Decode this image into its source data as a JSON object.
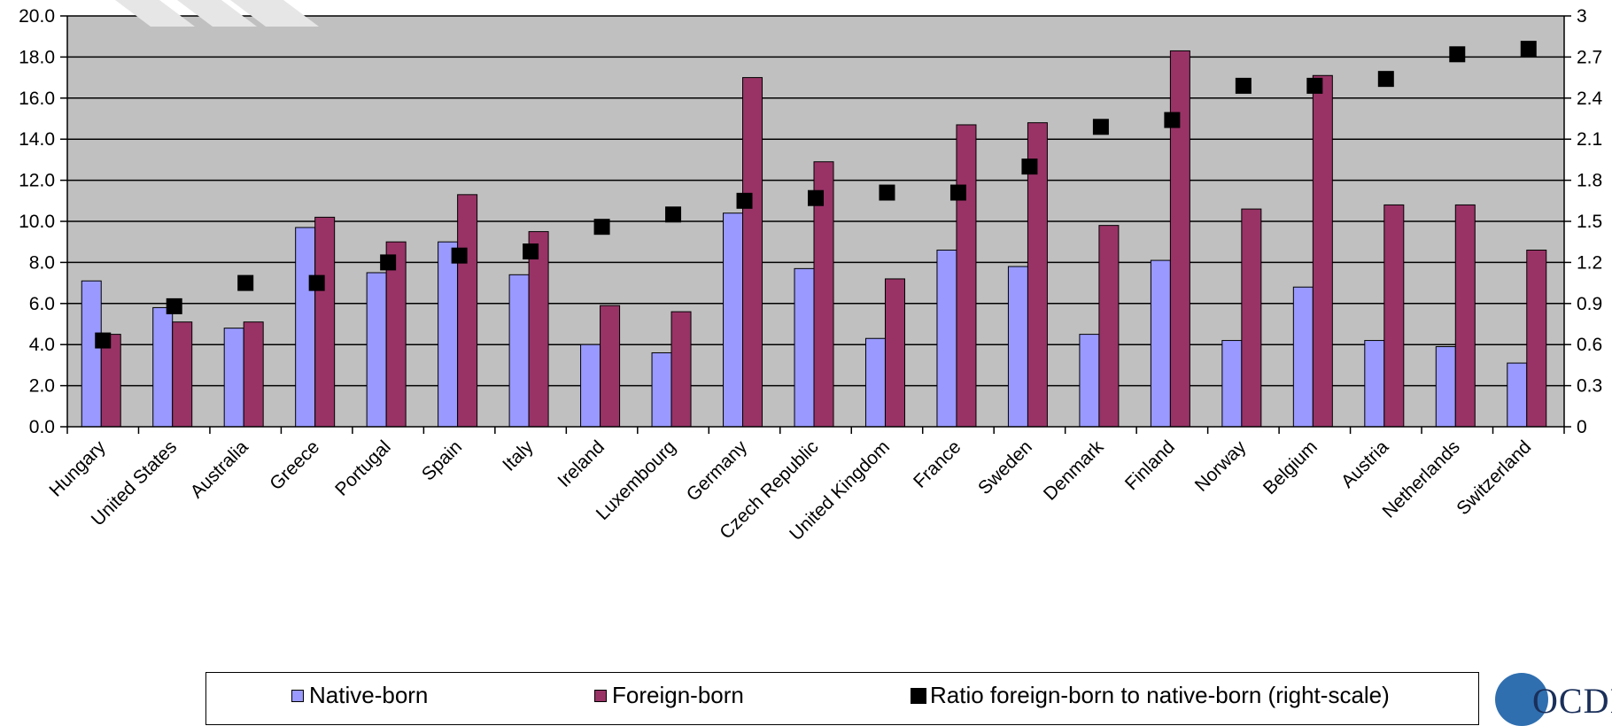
{
  "chart_data": {
    "type": "bar",
    "categories": [
      "Hungary",
      "United States",
      "Australia",
      "Greece",
      "Portugal",
      "Spain",
      "Italy",
      "Ireland",
      "Luxembourg",
      "Germany",
      "Czech Republic",
      "United Kingdom",
      "France",
      "Sweden",
      "Denmark",
      "Finland",
      "Norway",
      "Belgium",
      "Austria",
      "Netherlands",
      "Switzerland"
    ],
    "series": [
      {
        "name": "Native-born",
        "type": "bar",
        "axis": "left",
        "color": "#9999ff",
        "values": [
          7.1,
          5.8,
          4.8,
          9.7,
          7.5,
          9.0,
          7.4,
          4.0,
          3.6,
          10.4,
          7.7,
          4.3,
          8.6,
          7.8,
          4.5,
          8.1,
          4.2,
          6.8,
          4.2,
          3.9,
          3.1
        ]
      },
      {
        "name": "Foreign-born",
        "type": "bar",
        "axis": "left",
        "color": "#993366",
        "values": [
          4.5,
          5.1,
          5.1,
          10.2,
          9.0,
          11.3,
          9.5,
          5.9,
          5.6,
          17.0,
          12.9,
          7.2,
          14.7,
          14.8,
          9.8,
          18.3,
          10.6,
          17.1,
          10.8,
          10.8,
          8.6
        ]
      },
      {
        "name": "Ratio foreign-born to native-born (right-scale)",
        "type": "scatter",
        "axis": "right",
        "color": "#000000",
        "values": [
          0.63,
          0.88,
          1.05,
          1.05,
          1.2,
          1.25,
          1.28,
          1.46,
          1.55,
          1.65,
          1.67,
          1.71,
          1.71,
          1.9,
          2.19,
          2.24,
          2.49,
          2.49,
          2.54,
          2.72,
          2.76
        ]
      }
    ],
    "y_left": {
      "ylim": [
        0,
        20
      ],
      "ticks": [
        "0.0",
        "2.0",
        "4.0",
        "6.0",
        "8.0",
        "10.0",
        "12.0",
        "14.0",
        "16.0",
        "18.0",
        "20.0"
      ]
    },
    "y_right": {
      "ylim": [
        0,
        3
      ],
      "ticks": [
        "0",
        "0.3",
        "0.6",
        "0.9",
        "1.2",
        "1.5",
        "1.8",
        "2.1",
        "2.4",
        "2.7",
        "3"
      ]
    },
    "grid": true,
    "plot_background": "#c0c0c0",
    "legend_position": "bottom"
  },
  "legend": {
    "native_label": "Native-born",
    "foreign_label": "Foreign-born",
    "ratio_label": "Ratio foreign-born to native-born (right-scale)"
  },
  "logo": {
    "text": "OCDI"
  }
}
